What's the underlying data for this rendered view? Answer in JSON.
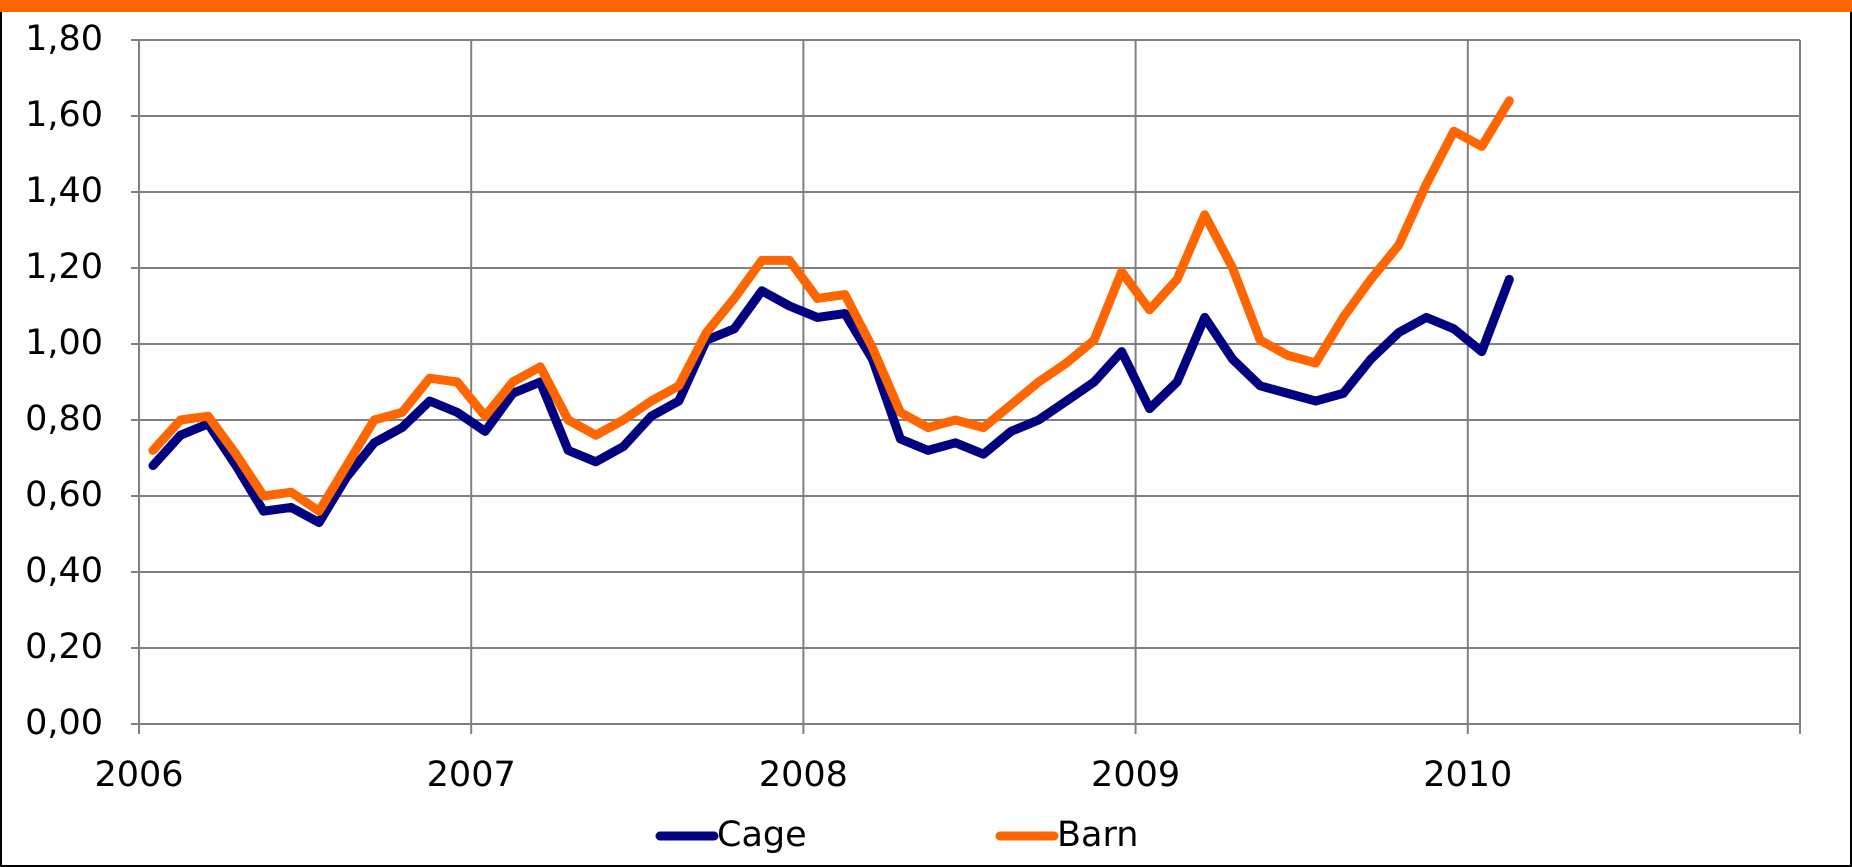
{
  "chart_data": {
    "type": "line",
    "x": [
      2006.042,
      2006.125,
      2006.208,
      2006.292,
      2006.375,
      2006.458,
      2006.542,
      2006.625,
      2006.708,
      2006.792,
      2006.875,
      2006.958,
      2007.042,
      2007.125,
      2007.208,
      2007.292,
      2007.375,
      2007.458,
      2007.542,
      2007.625,
      2007.708,
      2007.792,
      2007.875,
      2007.958,
      2008.042,
      2008.125,
      2008.208,
      2008.292,
      2008.375,
      2008.458,
      2008.542,
      2008.625,
      2008.708,
      2008.792,
      2008.875,
      2008.958,
      2009.042,
      2009.125,
      2009.208,
      2009.292,
      2009.375,
      2009.458,
      2009.542,
      2009.625,
      2009.708,
      2009.792,
      2009.875,
      2009.958,
      2010.042,
      2010.125
    ],
    "series": [
      {
        "name": "Cage",
        "color": "#000080",
        "values": [
          0.68,
          0.76,
          0.79,
          0.68,
          0.56,
          0.57,
          0.53,
          0.65,
          0.74,
          0.78,
          0.85,
          0.82,
          0.77,
          0.87,
          0.9,
          0.72,
          0.69,
          0.73,
          0.81,
          0.85,
          1.01,
          1.04,
          1.14,
          1.1,
          1.07,
          1.08,
          0.96,
          0.75,
          0.72,
          0.74,
          0.71,
          0.77,
          0.8,
          0.85,
          0.9,
          0.98,
          0.83,
          0.9,
          1.07,
          0.96,
          0.89,
          0.87,
          0.85,
          0.87,
          0.96,
          1.03,
          1.07,
          1.04,
          0.98,
          1.17
        ]
      },
      {
        "name": "Barn",
        "color": "#ff6600",
        "values": [
          0.72,
          0.8,
          0.81,
          0.71,
          0.6,
          0.61,
          0.56,
          0.68,
          0.8,
          0.82,
          0.91,
          0.9,
          0.81,
          0.9,
          0.94,
          0.8,
          0.76,
          0.8,
          0.85,
          0.89,
          1.03,
          1.12,
          1.22,
          1.22,
          1.12,
          1.13,
          0.99,
          0.82,
          0.78,
          0.8,
          0.78,
          0.84,
          0.9,
          0.95,
          1.01,
          1.19,
          1.09,
          1.17,
          1.34,
          1.2,
          1.01,
          0.97,
          0.95,
          1.07,
          1.17,
          1.26,
          1.42,
          1.56,
          1.52,
          1.64
        ]
      }
    ],
    "xlim": [
      2006,
      2011
    ],
    "xticks": [
      2006,
      2007,
      2008,
      2009,
      2010
    ],
    "ylim": [
      0,
      1.8
    ],
    "yticks": [
      {
        "value": 0,
        "label": "0,00"
      },
      {
        "value": 0.2,
        "label": "0,20"
      },
      {
        "value": 0.4,
        "label": "0,40"
      },
      {
        "value": 0.6,
        "label": "0,60"
      },
      {
        "value": 0.8,
        "label": "0,80"
      },
      {
        "value": 1.0,
        "label": "1,00"
      },
      {
        "value": 1.2,
        "label": "1,20"
      },
      {
        "value": 1.4,
        "label": "1,40"
      },
      {
        "value": 1.6,
        "label": "1,60"
      },
      {
        "value": 1.8,
        "label": "1,80"
      }
    ],
    "grid": true,
    "legend": "bottom"
  }
}
